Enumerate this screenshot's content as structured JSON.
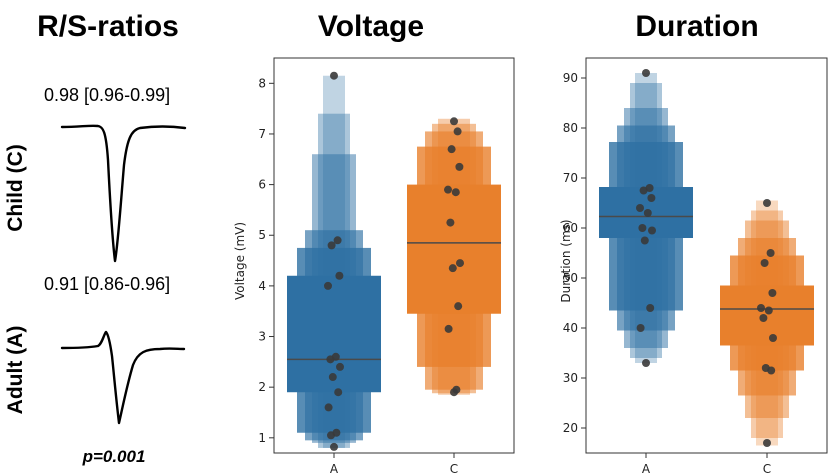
{
  "left_panel": {
    "title": "R/S-ratios",
    "child": {
      "label": "Child (C)",
      "ratio": "0.98 [0.96-0.99]"
    },
    "adult": {
      "label": "Adult (A)",
      "ratio": "0.91 [0.86-0.96]"
    },
    "p_value": "p=0.001"
  },
  "chart_data": [
    {
      "type": "boxenplot",
      "title": "Voltage",
      "xlabel": "",
      "ylabel": "Voltage (mV)",
      "categories": [
        "A",
        "C"
      ],
      "ylim": [
        0.7,
        8.5
      ],
      "yticks": [
        1,
        2,
        3,
        4,
        5,
        6,
        7,
        8
      ],
      "colors": {
        "A": "#2e70a3",
        "C": "#e8802c"
      },
      "medians": {
        "A": 2.55,
        "C": 4.85
      },
      "boxen": {
        "A": [
          [
            1.9,
            4.2
          ],
          [
            1.1,
            4.75
          ],
          [
            0.95,
            5.1
          ],
          [
            0.9,
            6.6
          ],
          [
            0.8,
            7.4
          ],
          [
            0.8,
            8.15
          ]
        ],
        "C": [
          [
            3.45,
            6.0
          ],
          [
            2.4,
            6.75
          ],
          [
            1.95,
            7.05
          ],
          [
            1.88,
            7.2
          ],
          [
            1.85,
            7.3
          ]
        ]
      },
      "points": {
        "A": [
          8.15,
          4.9,
          4.8,
          4.2,
          4.0,
          2.6,
          2.55,
          2.4,
          2.2,
          1.9,
          1.6,
          1.1,
          1.05,
          0.82
        ],
        "C": [
          7.25,
          7.05,
          6.7,
          6.35,
          5.9,
          5.85,
          5.25,
          4.45,
          4.35,
          3.6,
          3.15,
          1.95,
          1.9
        ]
      }
    },
    {
      "type": "boxenplot",
      "title": "Duration",
      "xlabel": "",
      "ylabel": "Duration (ms)",
      "categories": [
        "A",
        "C"
      ],
      "ylim": [
        15,
        94
      ],
      "yticks": [
        20,
        30,
        40,
        50,
        60,
        70,
        80,
        90
      ],
      "colors": {
        "A": "#2e70a3",
        "C": "#e8802c"
      },
      "medians": {
        "A": 62.3,
        "C": 43.8
      },
      "boxen": {
        "A": [
          [
            58.0,
            68.2
          ],
          [
            43.5,
            77.2
          ],
          [
            39.5,
            80.5
          ],
          [
            36.0,
            84.0
          ],
          [
            34.0,
            89.0
          ],
          [
            33.0,
            91.0
          ]
        ],
        "C": [
          [
            36.5,
            48.5
          ],
          [
            31.5,
            54.5
          ],
          [
            26.5,
            58.0
          ],
          [
            22.0,
            61.5
          ],
          [
            18.0,
            63.5
          ],
          [
            16.5,
            65.5
          ]
        ]
      },
      "points": {
        "A": [
          91.0,
          68.0,
          67.5,
          66.0,
          64.0,
          63.0,
          60.0,
          59.5,
          57.5,
          44.0,
          40.0,
          33.0
        ],
        "C": [
          65.0,
          55.0,
          53.0,
          47.0,
          44.0,
          43.5,
          42.0,
          38.0,
          32.0,
          31.5,
          17.0
        ]
      }
    }
  ]
}
